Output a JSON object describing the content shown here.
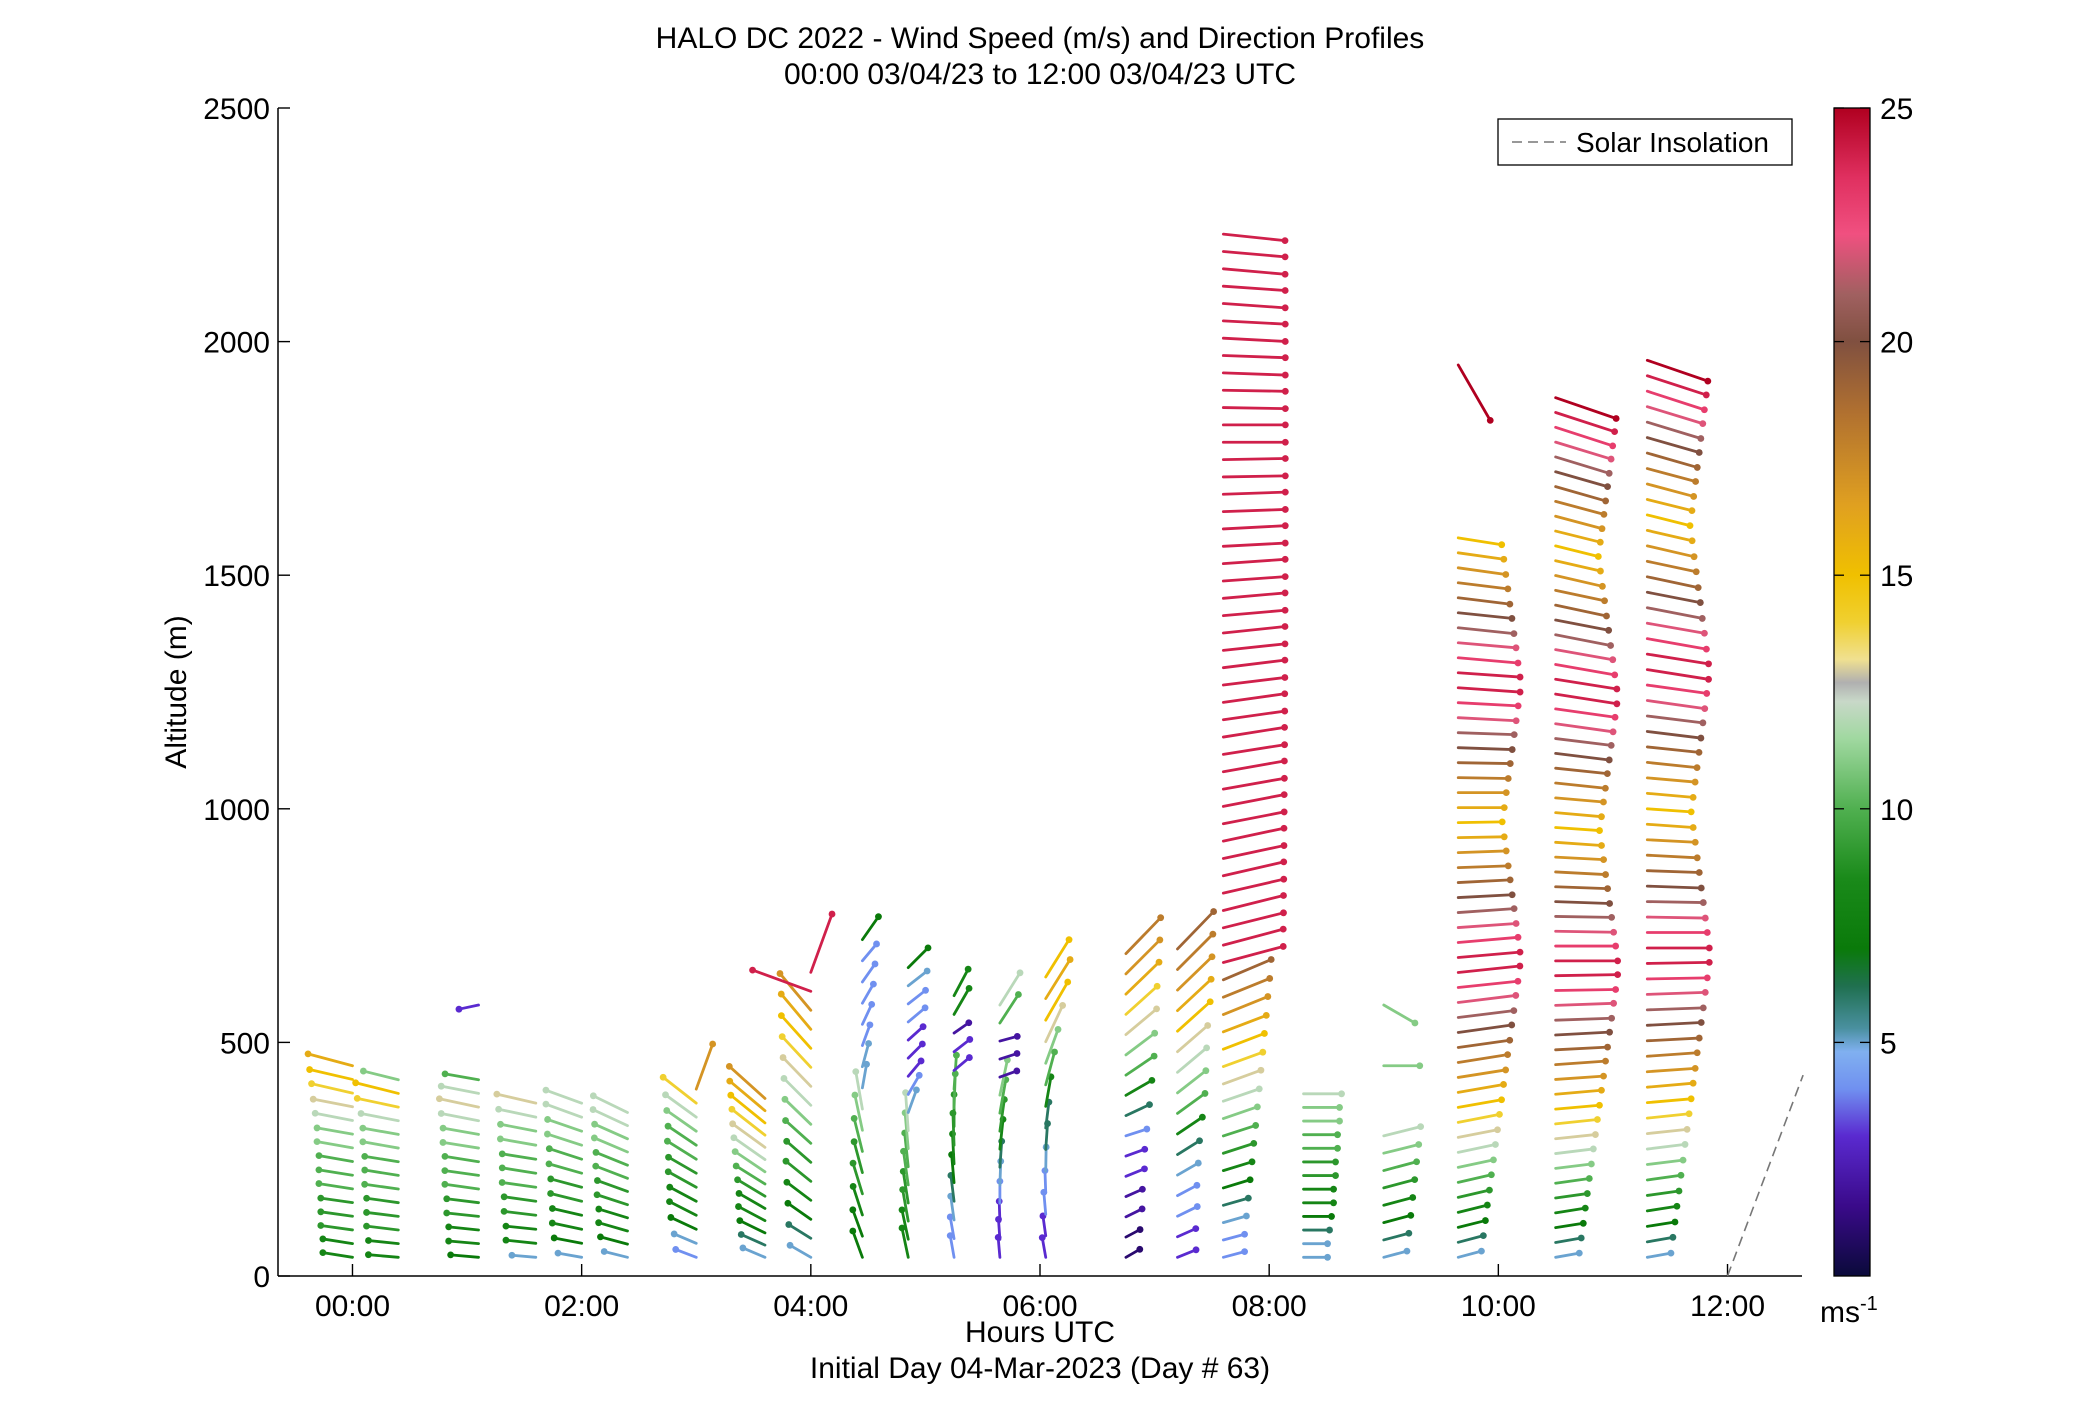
{
  "chart_data": {
    "type": "wind-barb profile",
    "title": "HALO DC 2022 - Wind Speed (m/s) and Direction Profiles",
    "subtitle": "00:00 03/04/23 to 12:00 03/04/23  UTC",
    "xlabel": "Hours UTC",
    "xlabel2": "Initial Day 04-Mar-2023 (Day # 63)",
    "ylabel": "Altitude (m)",
    "xlim": [
      -0.65,
      12.65
    ],
    "ylim": [
      0,
      2500
    ],
    "x_ticks": [
      0,
      2,
      4,
      6,
      8,
      10,
      12
    ],
    "x_tick_labels": [
      "00:00",
      "02:00",
      "04:00",
      "06:00",
      "08:00",
      "10:00",
      "12:00"
    ],
    "y_ticks": [
      0,
      500,
      1000,
      1500,
      2000,
      2500
    ],
    "y_tick_labels": [
      "0",
      "500",
      "1000",
      "1500",
      "2000",
      "2500"
    ],
    "legend": {
      "entries": [
        "Solar Insolation"
      ],
      "placement": "top-right"
    },
    "colorbar": {
      "range": [
        0,
        25
      ],
      "ticks": [
        5,
        10,
        15,
        20,
        25
      ],
      "tick_labels": [
        "5",
        "10",
        "15",
        "20",
        "25"
      ],
      "unit": "ms",
      "unit_exponent": "-1",
      "stops": [
        {
          "v": 0,
          "c": "#0a0a3a"
        },
        {
          "v": 1.5,
          "c": "#3a0a8a"
        },
        {
          "v": 3,
          "c": "#5a2ad0"
        },
        {
          "v": 4,
          "c": "#7090f0"
        },
        {
          "v": 4.8,
          "c": "#80b0f0"
        },
        {
          "v": 5.3,
          "c": "#4a90a0"
        },
        {
          "v": 6.2,
          "c": "#207050"
        },
        {
          "v": 7,
          "c": "#0a7a0a"
        },
        {
          "v": 8.5,
          "c": "#1a8a1a"
        },
        {
          "v": 10,
          "c": "#50b050"
        },
        {
          "v": 11.5,
          "c": "#a0d8a0"
        },
        {
          "v": 12.3,
          "c": "#c8d8c8"
        },
        {
          "v": 12.7,
          "c": "#b0b0b0"
        },
        {
          "v": 13.2,
          "c": "#f0e090"
        },
        {
          "v": 14,
          "c": "#f0d030"
        },
        {
          "v": 15,
          "c": "#f0c000"
        },
        {
          "v": 16.5,
          "c": "#e0a020"
        },
        {
          "v": 18.5,
          "c": "#b07030"
        },
        {
          "v": 20,
          "c": "#805040"
        },
        {
          "v": 21,
          "c": "#a06060"
        },
        {
          "v": 22.3,
          "c": "#f05080"
        },
        {
          "v": 23.5,
          "c": "#e03060"
        },
        {
          "v": 25,
          "c": "#b00020"
        }
      ]
    },
    "solar_insolation": {
      "x": [
        12.0,
        12.66
      ],
      "y": [
        0,
        430
      ]
    },
    "profiles": [
      {
        "t": 0.0,
        "s": [
          8,
          8,
          9,
          9,
          9,
          10,
          10,
          10,
          11,
          11,
          12,
          13,
          14,
          15,
          16
        ],
        "d": [
          99,
          99,
          98,
          98,
          98,
          99,
          99,
          100,
          100,
          100,
          101,
          101,
          103,
          103,
          105
        ],
        "top": 450
      },
      {
        "t": 0.4,
        "s": [
          8,
          8,
          9,
          9,
          9,
          10,
          10,
          10,
          11,
          11,
          12,
          14,
          15,
          11
        ],
        "d": [
          95,
          96,
          97,
          97,
          98,
          98,
          99,
          99,
          100,
          100,
          101,
          102,
          104,
          104
        ],
        "top": 420
      },
      {
        "t": 1.1,
        "s": [
          7,
          8,
          8,
          9,
          9,
          10,
          10,
          10,
          11,
          11,
          12,
          13,
          12,
          10
        ],
        "d": [
          95,
          95,
          96,
          96,
          97,
          98,
          98,
          99,
          99,
          100,
          101,
          102,
          101,
          100
        ],
        "top": 420,
        "extra": [
          [
            580,
            3,
            78
          ]
        ]
      },
      {
        "t": 1.6,
        "s": [
          5,
          8,
          8,
          9,
          9,
          10,
          10,
          10,
          11,
          11,
          12,
          13
        ],
        "d": [
          95,
          96,
          96,
          97,
          98,
          98,
          99,
          99,
          100,
          101,
          102,
          103
        ],
        "top": 370
      },
      {
        "t": 2.0,
        "s": [
          5,
          7,
          8,
          8,
          9,
          9,
          10,
          10,
          11,
          11,
          12,
          12
        ],
        "d": [
          100,
          101,
          102,
          103,
          104,
          105,
          106,
          108,
          108,
          109,
          110,
          110
        ],
        "top": 370
      },
      {
        "t": 2.4,
        "s": [
          5,
          7,
          8,
          8,
          9,
          9,
          10,
          10,
          11,
          11,
          12,
          12
        ],
        "d": [
          104,
          105,
          106,
          107,
          108,
          110,
          111,
          112,
          113,
          114,
          115,
          116
        ],
        "top": 350
      },
      {
        "t": 3.0,
        "s": [
          4,
          5,
          7,
          8,
          8,
          9,
          9,
          10,
          10,
          11,
          12,
          14,
          17
        ],
        "d": [
          111,
          113,
          115,
          117,
          118,
          119,
          120,
          122,
          124,
          125,
          126,
          128,
          200
        ],
        "top": 400
      },
      {
        "t": 3.6,
        "s": [
          5,
          6,
          7,
          8,
          8,
          9,
          10,
          11,
          12,
          13,
          14,
          15,
          16,
          17
        ],
        "d": [
          113,
          114,
          116,
          118,
          120,
          121,
          122,
          124,
          125,
          126,
          128,
          129,
          130,
          132
        ],
        "top": 380
      },
      {
        "t": 4.0,
        "s": [
          5,
          6,
          7,
          8,
          9,
          9,
          10,
          11,
          12,
          13,
          14,
          15,
          16,
          17,
          24,
          24
        ],
        "d": [
          120,
          122,
          125,
          127,
          129,
          131,
          132,
          134,
          135,
          136,
          137,
          138,
          140,
          140,
          110,
          200
        ],
        "top": 650
      },
      {
        "t": 4.45,
        "s": [
          7,
          7,
          8,
          9,
          9,
          10,
          11,
          12,
          5,
          5,
          4,
          4,
          4,
          4,
          4,
          7
        ],
        "d": [
          160,
          160,
          162,
          163,
          165,
          166,
          168,
          170,
          190,
          195,
          200,
          205,
          210,
          215,
          220,
          215
        ],
        "top": 720
      },
      {
        "t": 4.85,
        "s": [
          8,
          8,
          9,
          9,
          10,
          10,
          11,
          12,
          5,
          4,
          3,
          3,
          3,
          4,
          4,
          5,
          7
        ],
        "d": [
          168,
          168,
          170,
          171,
          172,
          174,
          175,
          176,
          200,
          210,
          220,
          225,
          228,
          230,
          232,
          232,
          225
        ],
        "top": 660
      },
      {
        "t": 5.25,
        "s": [
          4,
          4,
          5,
          6,
          7,
          8,
          9,
          9,
          10,
          10,
          3,
          3,
          2,
          8,
          8
        ],
        "d": [
          170,
          170,
          172,
          173,
          175,
          177,
          178,
          180,
          182,
          184,
          230,
          232,
          235,
          210,
          208
        ],
        "top": 600
      },
      {
        "t": 5.65,
        "s": [
          3,
          3,
          3,
          4,
          5,
          6,
          8,
          9,
          10,
          11,
          2,
          2,
          2,
          10,
          12
        ],
        "d": [
          175,
          176,
          178,
          180,
          182,
          184,
          186,
          188,
          190,
          192,
          250,
          252,
          255,
          213,
          212
        ],
        "top": 580
      },
      {
        "t": 6.05,
        "s": [
          3,
          3,
          4,
          4,
          5,
          6,
          6,
          8,
          10,
          11,
          13,
          15,
          16,
          15
        ],
        "d": [
          170,
          172,
          175,
          178,
          181,
          184,
          187,
          190,
          195,
          200,
          205,
          210,
          212,
          212
        ],
        "top": 640
      },
      {
        "t": 6.75,
        "s": [
          1,
          1,
          2,
          2,
          3,
          3,
          4,
          6,
          8,
          10,
          11,
          13,
          14,
          16,
          17,
          18
        ],
        "d": [
          240,
          242,
          244,
          246,
          248,
          250,
          252,
          245,
          240,
          236,
          233,
          230,
          228,
          226,
          225,
          224
        ],
        "top": 690
      },
      {
        "t": 7.2,
        "s": [
          3,
          3,
          4,
          4,
          5,
          6,
          8,
          10,
          11,
          12,
          13,
          15,
          16,
          17,
          18,
          19
        ],
        "d": [
          248,
          246,
          244,
          242,
          240,
          238,
          236,
          234,
          232,
          230,
          229,
          228,
          227,
          226,
          225,
          224
        ],
        "top": 700
      },
      {
        "t": 7.6,
        "s": [
          4,
          4,
          5,
          6,
          7,
          8,
          9,
          10,
          11,
          12,
          13,
          14,
          15,
          16,
          17,
          18,
          19,
          24,
          24,
          24,
          24,
          24,
          24,
          24,
          24,
          24,
          24,
          24,
          24,
          24,
          24,
          24,
          24,
          24,
          24,
          24,
          24,
          24,
          24,
          24,
          24,
          24,
          24,
          24,
          24,
          24,
          24,
          24,
          24,
          24,
          24,
          24,
          24,
          24,
          24,
          24,
          24,
          24,
          24,
          24
        ],
        "d": [
          255,
          255,
          254,
          254,
          253,
          253,
          252,
          252,
          251,
          251,
          250,
          250,
          249,
          249,
          248,
          248,
          247,
          255,
          255,
          256,
          256,
          257,
          257,
          258,
          258,
          259,
          259,
          260,
          260,
          261,
          261,
          262,
          262,
          263,
          263,
          264,
          264,
          265,
          265,
          266,
          266,
          267,
          267,
          268,
          268,
          269,
          269,
          270,
          270,
          271,
          271,
          272,
          272,
          273,
          273,
          274,
          274,
          275,
          275,
          276
        ],
        "top": 2230
      },
      {
        "t": 8.3,
        "s": [
          5,
          5,
          6,
          7,
          8,
          8,
          9,
          9,
          10,
          10,
          11,
          11,
          12
        ],
        "d": [
          270,
          270,
          270,
          270,
          270,
          270,
          270,
          270,
          270,
          270,
          270,
          270,
          270
        ],
        "top": 390
      },
      {
        "t": 9.0,
        "s": [
          5,
          6,
          7,
          8,
          9,
          10,
          11,
          12
        ],
        "d": [
          255,
          255,
          255,
          255,
          255,
          255,
          256,
          256
        ],
        "top": 300,
        "extra": [
          [
            580,
            11,
            300
          ],
          [
            450,
            11,
            270
          ]
        ]
      },
      {
        "t": 9.65,
        "s": [
          5,
          6,
          7,
          8,
          9,
          10,
          11,
          12,
          13,
          14,
          15,
          16,
          17,
          18,
          19,
          20,
          21,
          22,
          23,
          24,
          24,
          23,
          22,
          21,
          20,
          19,
          18,
          17,
          16,
          15,
          16,
          17,
          18,
          19,
          20,
          21,
          22,
          23,
          24,
          24,
          23,
          22,
          21,
          20,
          19,
          18,
          17,
          16,
          15
        ],
        "d": [
          255,
          255,
          256,
          256,
          257,
          257,
          258,
          258,
          259,
          259,
          260,
          260,
          261,
          261,
          262,
          262,
          263,
          263,
          264,
          264,
          265,
          265,
          266,
          266,
          267,
          267,
          268,
          268,
          269,
          269,
          270,
          270,
          271,
          271,
          272,
          272,
          273,
          273,
          274,
          274,
          275,
          275,
          276,
          276,
          277,
          277,
          278,
          278,
          279
        ],
        "top": 1580,
        "extra": [
          [
            1950,
            25,
            330
          ]
        ]
      },
      {
        "t": 10.5,
        "s": [
          5,
          6,
          7,
          8,
          9,
          10,
          11,
          12,
          13,
          14,
          15,
          16,
          17,
          18,
          19,
          20,
          21,
          22,
          23,
          24,
          24,
          23,
          22,
          21,
          20,
          19,
          18,
          17,
          16,
          15,
          16,
          17,
          18,
          19,
          20,
          21,
          22,
          23,
          24,
          24,
          23,
          22,
          21,
          20,
          19,
          18,
          17,
          16,
          15,
          16,
          17,
          18,
          19,
          20,
          21,
          22,
          23,
          24,
          25
        ],
        "d": [
          260,
          260,
          261,
          261,
          262,
          262,
          263,
          263,
          264,
          264,
          265,
          265,
          266,
          266,
          267,
          267,
          268,
          268,
          269,
          269,
          270,
          270,
          271,
          271,
          272,
          272,
          273,
          273,
          274,
          274,
          275,
          275,
          276,
          276,
          277,
          277,
          278,
          278,
          279,
          279,
          280,
          280,
          281,
          281,
          282,
          282,
          283,
          283,
          284,
          284,
          285,
          285,
          286,
          286,
          287,
          287,
          288,
          288,
          289
        ],
        "top": 1880
      },
      {
        "t": 11.3,
        "s": [
          5,
          6,
          7,
          8,
          9,
          10,
          11,
          12,
          13,
          14,
          15,
          16,
          17,
          18,
          19,
          20,
          21,
          22,
          23,
          24,
          24,
          23,
          22,
          21,
          20,
          19,
          18,
          17,
          16,
          15,
          16,
          17,
          18,
          19,
          20,
          21,
          22,
          23,
          24,
          24,
          23,
          22,
          21,
          20,
          19,
          18,
          17,
          16,
          15,
          16,
          17,
          18,
          19,
          20,
          21,
          22,
          23,
          24,
          25
        ],
        "d": [
          260,
          260,
          261,
          261,
          262,
          262,
          263,
          263,
          264,
          264,
          265,
          265,
          266,
          266,
          267,
          267,
          268,
          268,
          269,
          269,
          270,
          270,
          271,
          271,
          272,
          272,
          273,
          273,
          274,
          274,
          275,
          275,
          276,
          276,
          277,
          277,
          278,
          278,
          279,
          279,
          280,
          280,
          281,
          281,
          282,
          282,
          283,
          283,
          284,
          284,
          285,
          285,
          286,
          286,
          287,
          287,
          288,
          288,
          289
        ],
        "top": 1960
      }
    ]
  }
}
